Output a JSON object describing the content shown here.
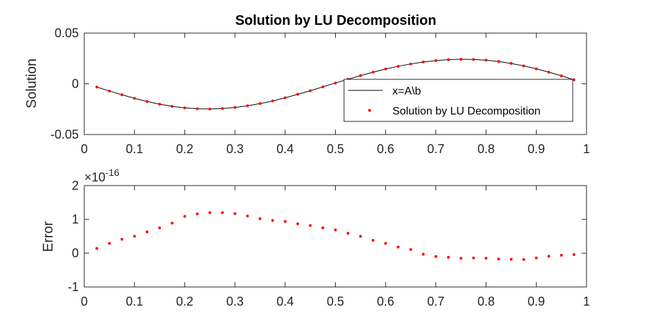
{
  "chart_data": [
    {
      "type": "line",
      "title": "Solution by LU Decomposition",
      "xlabel": "",
      "ylabel": "Solution",
      "xlim": [
        0,
        1
      ],
      "ylim": [
        -0.05,
        0.05
      ],
      "xticks": [
        "0",
        "0.1",
        "0.2",
        "0.3",
        "0.4",
        "0.5",
        "0.6",
        "0.7",
        "0.8",
        "0.9",
        "1"
      ],
      "yticks": [
        "0.05",
        "0",
        "-0.05"
      ],
      "ytick_values": [
        0.05,
        0,
        -0.05
      ],
      "grid": false,
      "legend_position": "middle-right",
      "series": [
        {
          "name": "x=A\\b",
          "style": "line",
          "color": "#000000",
          "x": [
            0.025,
            0.05,
            0.075,
            0.1,
            0.125,
            0.15,
            0.175,
            0.2,
            0.225,
            0.25,
            0.275,
            0.3,
            0.325,
            0.35,
            0.375,
            0.4,
            0.425,
            0.45,
            0.475,
            0.5,
            0.525,
            0.55,
            0.575,
            0.6,
            0.625,
            0.65,
            0.675,
            0.7,
            0.725,
            0.75,
            0.775,
            0.8,
            0.825,
            0.85,
            0.875,
            0.9,
            0.925,
            0.95,
            0.975
          ],
          "y": [
            -0.0032,
            -0.0071,
            -0.0108,
            -0.0143,
            -0.0174,
            -0.0201,
            -0.0222,
            -0.0237,
            -0.0246,
            -0.0248,
            -0.0244,
            -0.0233,
            -0.0217,
            -0.0195,
            -0.0169,
            -0.0138,
            -0.0104,
            -0.0068,
            -0.003,
            0.0008,
            0.0045,
            0.0081,
            0.0115,
            0.0146,
            0.0173,
            0.0196,
            0.0215,
            0.0229,
            0.0238,
            0.0242,
            0.024,
            0.0233,
            0.022,
            0.0201,
            0.0177,
            0.0148,
            0.0115,
            0.0079,
            0.004
          ]
        },
        {
          "name": "Solution by LU Decomposition",
          "style": "markers",
          "color": "#ff0000",
          "x": [
            0.025,
            0.05,
            0.075,
            0.1,
            0.125,
            0.15,
            0.175,
            0.2,
            0.225,
            0.25,
            0.275,
            0.3,
            0.325,
            0.35,
            0.375,
            0.4,
            0.425,
            0.45,
            0.475,
            0.5,
            0.525,
            0.55,
            0.575,
            0.6,
            0.625,
            0.65,
            0.675,
            0.7,
            0.725,
            0.75,
            0.775,
            0.8,
            0.825,
            0.85,
            0.875,
            0.9,
            0.925,
            0.95,
            0.975
          ],
          "y": [
            -0.0032,
            -0.0071,
            -0.0108,
            -0.0143,
            -0.0174,
            -0.0201,
            -0.0222,
            -0.0237,
            -0.0246,
            -0.0248,
            -0.0244,
            -0.0233,
            -0.0217,
            -0.0195,
            -0.0169,
            -0.0138,
            -0.0104,
            -0.0068,
            -0.003,
            0.0008,
            0.0045,
            0.0081,
            0.0115,
            0.0146,
            0.0173,
            0.0196,
            0.0215,
            0.0229,
            0.0238,
            0.0242,
            0.024,
            0.0233,
            0.022,
            0.0201,
            0.0177,
            0.0148,
            0.0115,
            0.0079,
            0.004
          ]
        }
      ]
    },
    {
      "type": "scatter",
      "title": "",
      "xlabel": "",
      "ylabel": "Error",
      "xlim": [
        0,
        1
      ],
      "ylim": [
        -1e-16,
        2e-16
      ],
      "xticks": [
        "0",
        "0.1",
        "0.2",
        "0.3",
        "0.4",
        "0.5",
        "0.6",
        "0.7",
        "0.8",
        "0.9",
        "1"
      ],
      "yticks": [
        "2",
        "1",
        "0",
        "-1"
      ],
      "ytick_values": [
        2e-16,
        1e-16,
        0,
        -1e-16
      ],
      "yscale_base": "×10",
      "yscale_exponent": "-16",
      "grid": false,
      "series": [
        {
          "color": "#ff0000",
          "x": [
            0.025,
            0.05,
            0.075,
            0.1,
            0.125,
            0.15,
            0.175,
            0.2,
            0.225,
            0.25,
            0.275,
            0.3,
            0.325,
            0.35,
            0.375,
            0.4,
            0.425,
            0.45,
            0.475,
            0.5,
            0.525,
            0.55,
            0.575,
            0.6,
            0.625,
            0.65,
            0.675,
            0.7,
            0.725,
            0.75,
            0.775,
            0.8,
            0.825,
            0.85,
            0.875,
            0.9,
            0.925,
            0.95,
            0.975
          ],
          "y": [
            1.4e-17,
            2.9e-17,
            4.1e-17,
            5e-17,
            6.3e-17,
            7.5e-17,
            8.9e-17,
            1.09e-16,
            1.16e-16,
            1.2e-16,
            1.2e-16,
            1.17e-16,
            1.1e-16,
            1.02e-16,
            9.7e-17,
            9.4e-17,
            8.7e-17,
            8.2e-17,
            7.5e-17,
            6.9e-17,
            5.9e-17,
            5e-17,
            3.8e-17,
            2.9e-17,
            1.8e-17,
            1.1e-17,
            -3e-18,
            -1e-17,
            -1.2e-17,
            -1.5e-17,
            -1.4e-17,
            -1.5e-17,
            -1.7e-17,
            -1.8e-17,
            -1.9e-17,
            -1.4e-17,
            -9e-18,
            -6e-18,
            -4e-18
          ]
        }
      ]
    }
  ]
}
